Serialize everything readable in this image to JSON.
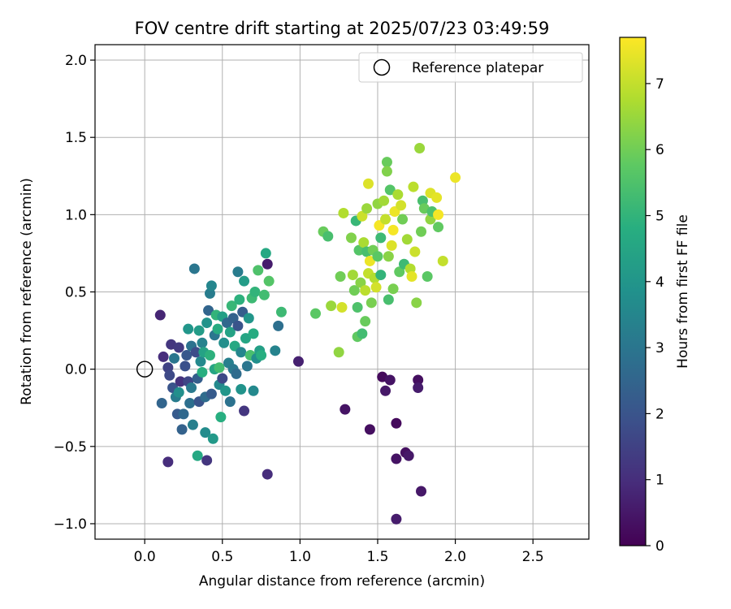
{
  "chart_data": {
    "type": "scatter",
    "title": "FOV centre drift starting at 2025/07/23 03:49:59",
    "xlabel": "Angular distance from reference (arcmin)",
    "ylabel": "Rotation from reference (arcmin)",
    "xlim": [
      -0.32,
      2.86
    ],
    "ylim": [
      -1.1,
      2.1
    ],
    "xticks": [
      0.0,
      0.5,
      1.0,
      1.5,
      2.0,
      2.5
    ],
    "xtick_labels": [
      "0.0",
      "0.5",
      "1.0",
      "1.5",
      "2.0",
      "2.5"
    ],
    "yticks": [
      -1.0,
      -0.5,
      0.0,
      0.5,
      1.0,
      1.5,
      2.0
    ],
    "ytick_labels": [
      "−1.0",
      "−0.5",
      "0.0",
      "0.5",
      "1.0",
      "1.5",
      "2.0"
    ],
    "grid": true,
    "legend": {
      "position": "top-right",
      "entries": [
        {
          "label": "Reference platepar",
          "marker": "open-circle"
        }
      ]
    },
    "reference_point": {
      "x": 0.0,
      "y": 0.0
    },
    "colorbar": {
      "label": "Hours from first FF file",
      "colormap": "viridis",
      "range": [
        0,
        7.7
      ],
      "ticks": [
        0,
        1,
        2,
        3,
        4,
        5,
        6,
        7
      ],
      "tick_labels": [
        "0",
        "1",
        "2",
        "3",
        "4",
        "5",
        "6",
        "7"
      ]
    },
    "points": [
      {
        "x": 0.1,
        "y": 0.35,
        "c": 0.8
      },
      {
        "x": 0.12,
        "y": 0.08,
        "c": 1.0
      },
      {
        "x": 0.15,
        "y": -0.6,
        "c": 1.0
      },
      {
        "x": 0.17,
        "y": 0.16,
        "c": 1.2
      },
      {
        "x": 0.15,
        "y": 0.01,
        "c": 1.5
      },
      {
        "x": 0.16,
        "y": -0.04,
        "c": 1.7
      },
      {
        "x": 0.18,
        "y": -0.12,
        "c": 2.0
      },
      {
        "x": 0.11,
        "y": -0.22,
        "c": 2.5
      },
      {
        "x": 0.19,
        "y": 0.07,
        "c": 3.0
      },
      {
        "x": 0.2,
        "y": -0.18,
        "c": 3.2
      },
      {
        "x": 0.21,
        "y": -0.29,
        "c": 2.2
      },
      {
        "x": 0.22,
        "y": -0.15,
        "c": 3.8
      },
      {
        "x": 0.22,
        "y": 0.14,
        "c": 1.3
      },
      {
        "x": 0.23,
        "y": -0.08,
        "c": 1.1
      },
      {
        "x": 0.24,
        "y": -0.39,
        "c": 2.4
      },
      {
        "x": 0.25,
        "y": -0.29,
        "c": 2.6
      },
      {
        "x": 0.26,
        "y": 0.02,
        "c": 1.9
      },
      {
        "x": 0.27,
        "y": 0.09,
        "c": 2.1
      },
      {
        "x": 0.28,
        "y": 0.26,
        "c": 4.0
      },
      {
        "x": 0.28,
        "y": -0.08,
        "c": 1.6
      },
      {
        "x": 0.29,
        "y": -0.22,
        "c": 2.8
      },
      {
        "x": 0.3,
        "y": 0.15,
        "c": 2.9
      },
      {
        "x": 0.3,
        "y": -0.12,
        "c": 3.1
      },
      {
        "x": 0.31,
        "y": -0.36,
        "c": 3.3
      },
      {
        "x": 0.32,
        "y": 0.65,
        "c": 3.0
      },
      {
        "x": 0.33,
        "y": 0.11,
        "c": 1.8
      },
      {
        "x": 0.34,
        "y": -0.06,
        "c": 2.3
      },
      {
        "x": 0.34,
        "y": -0.56,
        "c": 4.6
      },
      {
        "x": 0.35,
        "y": 0.25,
        "c": 4.2
      },
      {
        "x": 0.35,
        "y": -0.21,
        "c": 2.0
      },
      {
        "x": 0.36,
        "y": 0.05,
        "c": 3.6
      },
      {
        "x": 0.37,
        "y": -0.02,
        "c": 4.8
      },
      {
        "x": 0.37,
        "y": 0.17,
        "c": 3.4
      },
      {
        "x": 0.38,
        "y": 0.11,
        "c": 4.4
      },
      {
        "x": 0.39,
        "y": -0.18,
        "c": 2.7
      },
      {
        "x": 0.39,
        "y": -0.41,
        "c": 3.7
      },
      {
        "x": 0.4,
        "y": -0.59,
        "c": 1.2
      },
      {
        "x": 0.4,
        "y": 0.3,
        "c": 3.9
      },
      {
        "x": 0.41,
        "y": 0.38,
        "c": 2.5
      },
      {
        "x": 0.42,
        "y": 0.49,
        "c": 3.2
      },
      {
        "x": 0.42,
        "y": 0.09,
        "c": 4.9
      },
      {
        "x": 0.43,
        "y": 0.54,
        "c": 3.5
      },
      {
        "x": 0.43,
        "y": -0.16,
        "c": 2.2
      },
      {
        "x": 0.44,
        "y": -0.45,
        "c": 4.1
      },
      {
        "x": 0.45,
        "y": 0.22,
        "c": 3.0
      },
      {
        "x": 0.45,
        "y": 0.0,
        "c": 4.5
      },
      {
        "x": 0.46,
        "y": 0.35,
        "c": 5.0
      },
      {
        "x": 0.47,
        "y": 0.26,
        "c": 4.7
      },
      {
        "x": 0.48,
        "y": -0.1,
        "c": 3.6
      },
      {
        "x": 0.48,
        "y": 0.01,
        "c": 5.3
      },
      {
        "x": 0.49,
        "y": -0.31,
        "c": 4.8
      },
      {
        "x": 0.5,
        "y": 0.34,
        "c": 4.3
      },
      {
        "x": 0.5,
        "y": -0.06,
        "c": 1.7
      },
      {
        "x": 0.51,
        "y": 0.17,
        "c": 3.8
      },
      {
        "x": 0.52,
        "y": -0.14,
        "c": 4.0
      },
      {
        "x": 0.53,
        "y": 0.3,
        "c": 2.6
      },
      {
        "x": 0.54,
        "y": 0.04,
        "c": 3.3
      },
      {
        "x": 0.55,
        "y": 0.24,
        "c": 4.4
      },
      {
        "x": 0.55,
        "y": -0.21,
        "c": 2.9
      },
      {
        "x": 0.56,
        "y": 0.41,
        "c": 5.1
      },
      {
        "x": 0.57,
        "y": 0.33,
        "c": 2.4
      },
      {
        "x": 0.57,
        "y": 0.0,
        "c": 3.1
      },
      {
        "x": 0.58,
        "y": 0.15,
        "c": 4.6
      },
      {
        "x": 0.59,
        "y": -0.03,
        "c": 2.7
      },
      {
        "x": 0.6,
        "y": 0.63,
        "c": 3.2
      },
      {
        "x": 0.6,
        "y": 0.28,
        "c": 2.0
      },
      {
        "x": 0.61,
        "y": 0.45,
        "c": 4.9
      },
      {
        "x": 0.62,
        "y": 0.11,
        "c": 3.5
      },
      {
        "x": 0.62,
        "y": -0.13,
        "c": 3.9
      },
      {
        "x": 0.63,
        "y": 0.37,
        "c": 2.3
      },
      {
        "x": 0.64,
        "y": 0.57,
        "c": 4.2
      },
      {
        "x": 0.64,
        "y": -0.27,
        "c": 1.2
      },
      {
        "x": 0.65,
        "y": 0.2,
        "c": 4.5
      },
      {
        "x": 0.66,
        "y": 0.02,
        "c": 3.0
      },
      {
        "x": 0.67,
        "y": 0.33,
        "c": 4.0
      },
      {
        "x": 0.68,
        "y": 0.09,
        "c": 5.4
      },
      {
        "x": 0.69,
        "y": 0.46,
        "c": 5.2
      },
      {
        "x": 0.7,
        "y": -0.14,
        "c": 3.6
      },
      {
        "x": 0.7,
        "y": 0.23,
        "c": 4.7
      },
      {
        "x": 0.71,
        "y": 0.5,
        "c": 5.0
      },
      {
        "x": 0.72,
        "y": 0.07,
        "c": 3.8
      },
      {
        "x": 0.73,
        "y": 0.64,
        "c": 5.5
      },
      {
        "x": 0.74,
        "y": 0.12,
        "c": 4.3
      },
      {
        "x": 0.75,
        "y": 0.09,
        "c": 4.8
      },
      {
        "x": 0.77,
        "y": 0.48,
        "c": 5.3
      },
      {
        "x": 0.78,
        "y": 0.75,
        "c": 4.6
      },
      {
        "x": 0.79,
        "y": 0.68,
        "c": 0.6
      },
      {
        "x": 0.79,
        "y": -0.68,
        "c": 1.0
      },
      {
        "x": 0.8,
        "y": 0.57,
        "c": 5.6
      },
      {
        "x": 0.84,
        "y": 0.12,
        "c": 3.4
      },
      {
        "x": 0.86,
        "y": 0.28,
        "c": 2.8
      },
      {
        "x": 0.88,
        "y": 0.37,
        "c": 5.2
      },
      {
        "x": 0.99,
        "y": 0.05,
        "c": 0.7
      },
      {
        "x": 1.1,
        "y": 0.36,
        "c": 5.7
      },
      {
        "x": 1.15,
        "y": 0.89,
        "c": 5.9
      },
      {
        "x": 1.18,
        "y": 0.86,
        "c": 5.4
      },
      {
        "x": 1.2,
        "y": 0.41,
        "c": 6.5
      },
      {
        "x": 1.25,
        "y": 0.11,
        "c": 6.4
      },
      {
        "x": 1.26,
        "y": 0.6,
        "c": 6.0
      },
      {
        "x": 1.27,
        "y": 0.4,
        "c": 7.2
      },
      {
        "x": 1.28,
        "y": 1.01,
        "c": 6.8
      },
      {
        "x": 1.29,
        "y": -0.26,
        "c": 0.4
      },
      {
        "x": 1.33,
        "y": 0.85,
        "c": 6.2
      },
      {
        "x": 1.34,
        "y": 0.61,
        "c": 6.6
      },
      {
        "x": 1.35,
        "y": 0.51,
        "c": 6.0
      },
      {
        "x": 1.36,
        "y": 0.96,
        "c": 5.1
      },
      {
        "x": 1.37,
        "y": 0.4,
        "c": 5.5
      },
      {
        "x": 1.37,
        "y": 0.21,
        "c": 5.8
      },
      {
        "x": 1.38,
        "y": 0.77,
        "c": 5.6
      },
      {
        "x": 1.39,
        "y": 0.56,
        "c": 6.3
      },
      {
        "x": 1.4,
        "y": 0.99,
        "c": 7.1
      },
      {
        "x": 1.4,
        "y": 0.23,
        "c": 5.3
      },
      {
        "x": 1.41,
        "y": 0.82,
        "c": 6.7
      },
      {
        "x": 1.42,
        "y": 0.51,
        "c": 6.9
      },
      {
        "x": 1.42,
        "y": 0.31,
        "c": 5.9
      },
      {
        "x": 1.43,
        "y": 1.04,
        "c": 6.5
      },
      {
        "x": 1.43,
        "y": 0.76,
        "c": 5.4
      },
      {
        "x": 1.44,
        "y": 0.62,
        "c": 7.0
      },
      {
        "x": 1.44,
        "y": 1.2,
        "c": 7.3
      },
      {
        "x": 1.45,
        "y": 0.7,
        "c": 7.5
      },
      {
        "x": 1.45,
        "y": -0.39,
        "c": 0.3
      },
      {
        "x": 1.46,
        "y": 0.43,
        "c": 6.1
      },
      {
        "x": 1.47,
        "y": 0.77,
        "c": 6.0
      },
      {
        "x": 1.48,
        "y": 0.59,
        "c": 6.8
      },
      {
        "x": 1.49,
        "y": 0.53,
        "c": 7.2
      },
      {
        "x": 1.5,
        "y": 0.73,
        "c": 5.7
      },
      {
        "x": 1.5,
        "y": 1.07,
        "c": 6.4
      },
      {
        "x": 1.51,
        "y": 0.93,
        "c": 7.6
      },
      {
        "x": 1.52,
        "y": 0.85,
        "c": 5.2
      },
      {
        "x": 1.52,
        "y": 0.61,
        "c": 5.0
      },
      {
        "x": 1.53,
        "y": -0.05,
        "c": 0.2
      },
      {
        "x": 1.54,
        "y": 1.09,
        "c": 6.6
      },
      {
        "x": 1.55,
        "y": 0.97,
        "c": 7.0
      },
      {
        "x": 1.55,
        "y": -0.14,
        "c": 0.5
      },
      {
        "x": 1.56,
        "y": 1.34,
        "c": 5.9
      },
      {
        "x": 1.56,
        "y": 1.28,
        "c": 6.2
      },
      {
        "x": 1.57,
        "y": 0.45,
        "c": 5.4
      },
      {
        "x": 1.57,
        "y": 0.73,
        "c": 6.3
      },
      {
        "x": 1.58,
        "y": -0.07,
        "c": 0.4
      },
      {
        "x": 1.58,
        "y": 1.16,
        "c": 5.6
      },
      {
        "x": 1.59,
        "y": 0.8,
        "c": 7.3
      },
      {
        "x": 1.6,
        "y": 0.9,
        "c": 7.6
      },
      {
        "x": 1.6,
        "y": 0.52,
        "c": 6.1
      },
      {
        "x": 1.61,
        "y": 1.02,
        "c": 7.5
      },
      {
        "x": 1.62,
        "y": -0.35,
        "c": 0.2
      },
      {
        "x": 1.62,
        "y": -0.58,
        "c": 0.4
      },
      {
        "x": 1.62,
        "y": -0.97,
        "c": 0.6
      },
      {
        "x": 1.63,
        "y": 1.13,
        "c": 6.7
      },
      {
        "x": 1.64,
        "y": 0.63,
        "c": 5.8
      },
      {
        "x": 1.65,
        "y": 1.06,
        "c": 7.2
      },
      {
        "x": 1.66,
        "y": 0.97,
        "c": 6.0
      },
      {
        "x": 1.67,
        "y": 0.68,
        "c": 5.2
      },
      {
        "x": 1.68,
        "y": -0.54,
        "c": 0.3
      },
      {
        "x": 1.69,
        "y": 0.84,
        "c": 6.6
      },
      {
        "x": 1.7,
        "y": -0.56,
        "c": 0.5
      },
      {
        "x": 1.71,
        "y": 0.65,
        "c": 6.8
      },
      {
        "x": 1.72,
        "y": 0.6,
        "c": 7.4
      },
      {
        "x": 1.73,
        "y": 1.18,
        "c": 6.9
      },
      {
        "x": 1.74,
        "y": 0.76,
        "c": 7.1
      },
      {
        "x": 1.75,
        "y": 0.43,
        "c": 6.3
      },
      {
        "x": 1.76,
        "y": -0.07,
        "c": 0.3
      },
      {
        "x": 1.76,
        "y": -0.12,
        "c": 0.6
      },
      {
        "x": 1.77,
        "y": 1.43,
        "c": 6.5
      },
      {
        "x": 1.78,
        "y": 0.89,
        "c": 6.0
      },
      {
        "x": 1.78,
        "y": -0.79,
        "c": 0.5
      },
      {
        "x": 1.79,
        "y": 1.09,
        "c": 5.4
      },
      {
        "x": 1.8,
        "y": 1.04,
        "c": 5.9
      },
      {
        "x": 1.82,
        "y": 0.6,
        "c": 5.7
      },
      {
        "x": 1.84,
        "y": 0.97,
        "c": 6.4
      },
      {
        "x": 1.84,
        "y": 1.14,
        "c": 7.3
      },
      {
        "x": 1.85,
        "y": 1.02,
        "c": 5.5
      },
      {
        "x": 1.88,
        "y": 1.11,
        "c": 7.4
      },
      {
        "x": 1.89,
        "y": 1.0,
        "c": 7.6
      },
      {
        "x": 1.89,
        "y": 0.92,
        "c": 5.8
      },
      {
        "x": 1.92,
        "y": 0.7,
        "c": 7.0
      },
      {
        "x": 2.0,
        "y": 1.24,
        "c": 7.5
      }
    ]
  }
}
